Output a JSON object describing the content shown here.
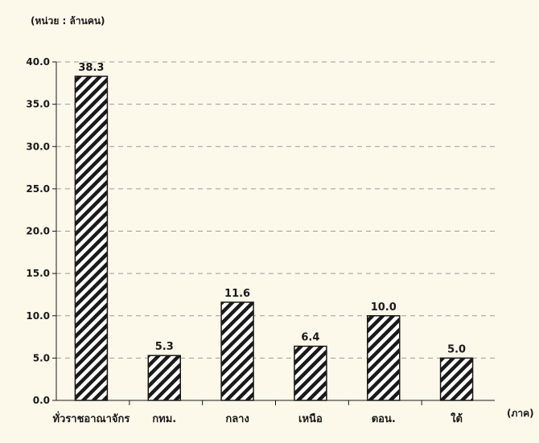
{
  "chart_data": {
    "type": "bar",
    "unit_label": "(หน่วย : ล้านคน)",
    "xlabel": "(ภาค)",
    "categories": [
      "ทั่วราชอาณาจักร",
      "กทม.",
      "กลาง",
      "เหนือ",
      "ตอน.",
      "ใต้"
    ],
    "values": [
      38.3,
      5.3,
      11.6,
      6.4,
      10.0,
      5.0
    ],
    "data_labels": [
      "38.3",
      "5.3",
      "11.6",
      "6.4",
      "10.0",
      "5.0"
    ],
    "y_ticks": [
      "0.0",
      "5.0",
      "10.0",
      "15.0",
      "20.0",
      "25.0",
      "30.0",
      "35.0",
      "40.0"
    ],
    "ylim": [
      0,
      40
    ],
    "grid": true,
    "bar_pattern": "diagonal-hatch",
    "colors": {
      "background": "#fcf8ea",
      "bar_stroke": "#1a1a1a",
      "grid": "#9a9a9a"
    }
  }
}
